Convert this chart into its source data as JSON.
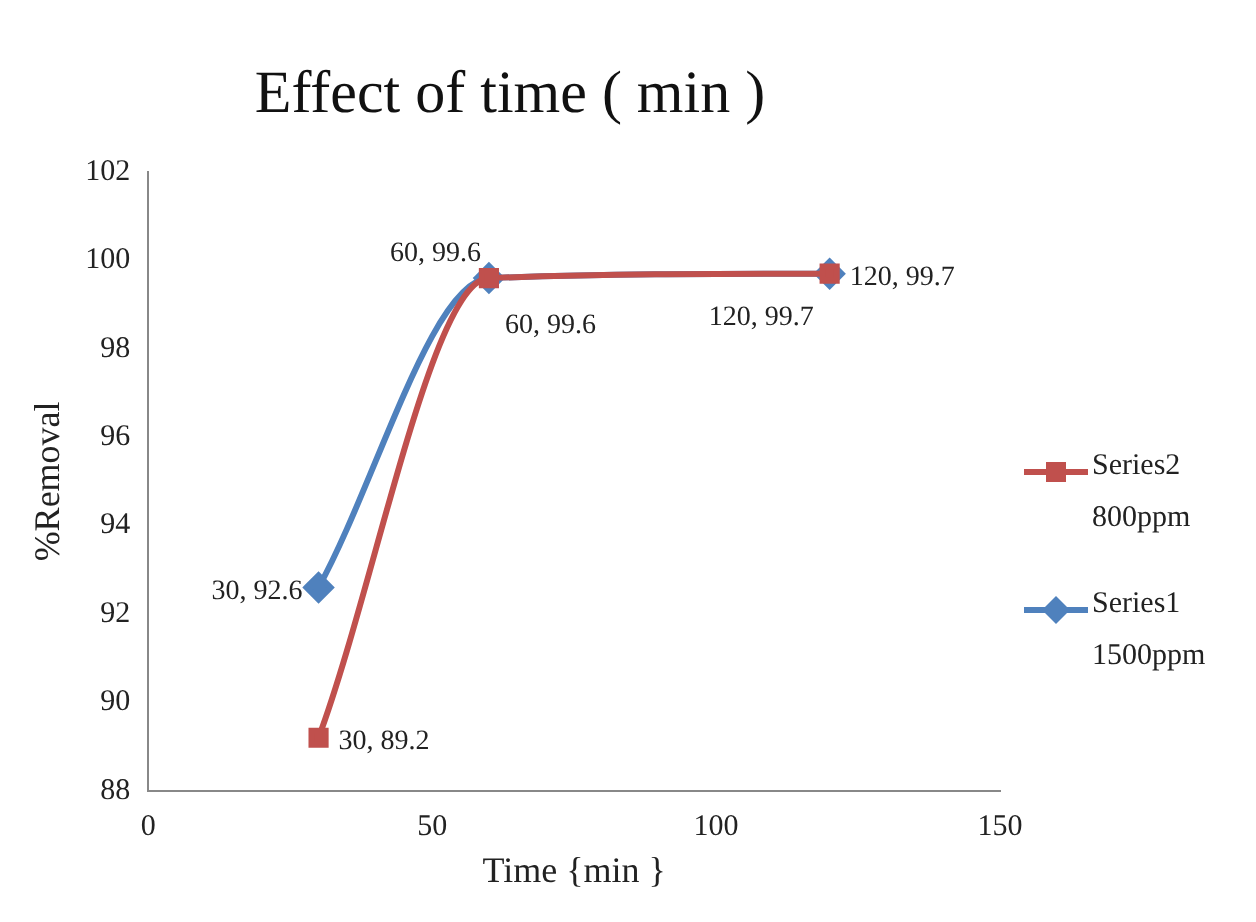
{
  "chart_data": {
    "type": "line",
    "title": "Effect of time ( min )",
    "xlabel": "Time {min }",
    "ylabel": "%Removal",
    "x": [
      30,
      60,
      120
    ],
    "series": [
      {
        "name": "Series2 800ppm",
        "color": "#c0504d",
        "marker": "square",
        "values": [
          89.2,
          99.6,
          99.7
        ],
        "value_labels": [
          "30, 89.2",
          "60, 99.6",
          "120, 99.7"
        ]
      },
      {
        "name": "Series1 1500ppm",
        "color": "#4f81bd",
        "marker": "diamond",
        "values": [
          92.6,
          99.6,
          99.7
        ],
        "value_labels": [
          "30, 92.6",
          "60, 99.6",
          "120, 99.7"
        ]
      }
    ],
    "xlim": [
      0,
      150
    ],
    "xticks": [
      0,
      50,
      100,
      150
    ],
    "ylim": [
      88,
      102
    ],
    "yticks": [
      88,
      90,
      92,
      94,
      96,
      98,
      100,
      102
    ],
    "grid": false,
    "legend": "right"
  }
}
